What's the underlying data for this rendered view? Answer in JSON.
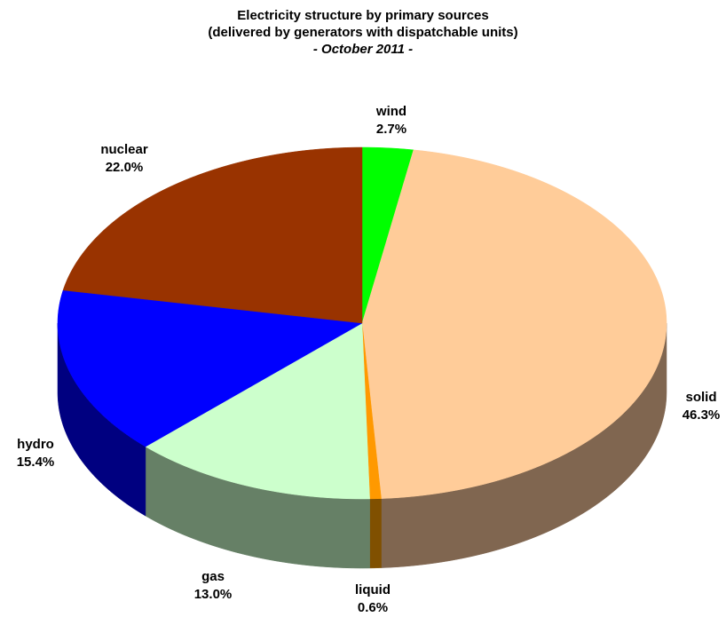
{
  "chart_data": {
    "type": "pie",
    "title_lines": [
      "Electricity structure by primary sources",
      "(delivered by generators with dispatchable units)",
      "- October 2011 -"
    ],
    "slices": [
      {
        "name": "wind",
        "value": 2.7,
        "label": "2.7%",
        "color": "#00ff00",
        "side_color": "#008000"
      },
      {
        "name": "solid",
        "value": 46.3,
        "label": "46.3%",
        "color": "#ffcc99",
        "side_color": "#806650"
      },
      {
        "name": "liquid",
        "value": 0.6,
        "label": "0.6%",
        "color": "#ff9900",
        "side_color": "#805000"
      },
      {
        "name": "gas",
        "value": 13.0,
        "label": "13.0%",
        "color": "#ccffcc",
        "side_color": "#668066"
      },
      {
        "name": "hydro",
        "value": 15.4,
        "label": "15.4%",
        "color": "#0000ff",
        "side_color": "#000080"
      },
      {
        "name": "nuclear",
        "value": 22.0,
        "label": "22.0%",
        "color": "#993300",
        "side_color": "#4d1a00"
      }
    ]
  }
}
